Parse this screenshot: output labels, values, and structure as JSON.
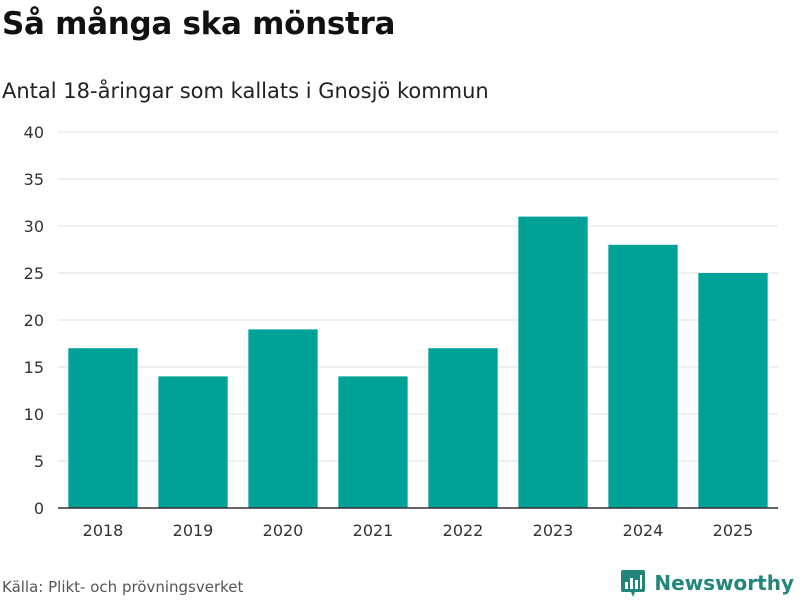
{
  "title": "Så många ska mönstra",
  "subtitle": "Antal 18-åringar som kallats i Gnosjö kommun",
  "source": "Källa: Plikt- och prövningsverket",
  "brand": {
    "name": "Newsworthy",
    "icon": "newsworthy-logo-icon",
    "color": "#22857a"
  },
  "colors": {
    "bar": "#00a197",
    "grid": "#e2e2e2",
    "axis": "#333333"
  },
  "chart_data": {
    "type": "bar",
    "title": "Så många ska mönstra",
    "subtitle": "Antal 18-åringar som kallats i Gnosjö kommun",
    "xlabel": "",
    "ylabel": "",
    "categories": [
      "2018",
      "2019",
      "2020",
      "2021",
      "2022",
      "2023",
      "2024",
      "2025"
    ],
    "values": [
      17,
      14,
      19,
      14,
      17,
      31,
      28,
      25
    ],
    "ylim": [
      0,
      40
    ],
    "yticks": [
      0,
      5,
      10,
      15,
      20,
      25,
      30,
      35,
      40
    ],
    "grid": true,
    "legend": "none"
  }
}
